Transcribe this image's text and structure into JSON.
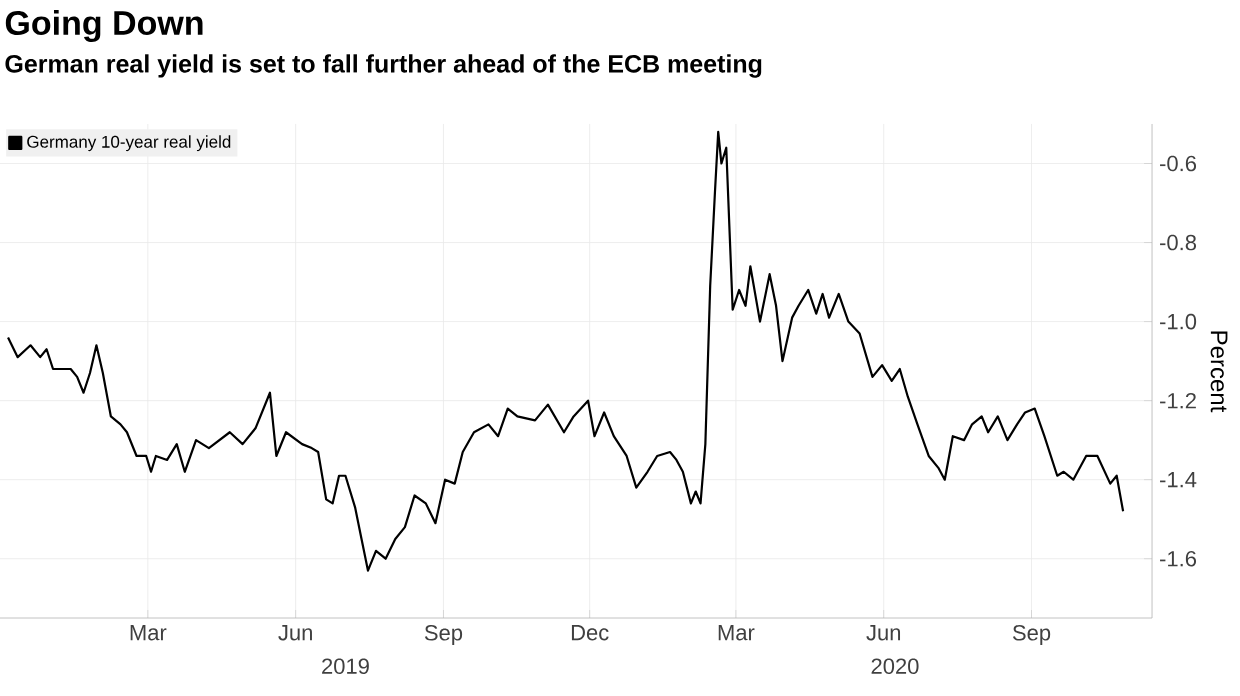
{
  "chart_data": {
    "type": "line",
    "title": "Going Down",
    "subtitle": "German real yield is set to fall further ahead of the ECB meeting",
    "ylabel": "Percent",
    "x": [
      "2018-12-04",
      "2018-12-10",
      "2018-12-18",
      "2018-12-24",
      "2018-12-28",
      "2019-01-01",
      "2019-01-12",
      "2019-01-16",
      "2019-01-20",
      "2019-01-24",
      "2019-01-28",
      "2019-02-01",
      "2019-02-06",
      "2019-02-12",
      "2019-02-16",
      "2019-02-22",
      "2019-02-28",
      "2019-03-03",
      "2019-03-06",
      "2019-03-13",
      "2019-03-19",
      "2019-03-24",
      "2019-03-31",
      "2019-04-08",
      "2019-04-21",
      "2019-04-29",
      "2019-05-07",
      "2019-05-16",
      "2019-05-20",
      "2019-05-26",
      "2019-06-05",
      "2019-06-11",
      "2019-06-15",
      "2019-06-20",
      "2019-06-24",
      "2019-06-28",
      "2019-07-02",
      "2019-07-08",
      "2019-07-12",
      "2019-07-16",
      "2019-07-21",
      "2019-07-27",
      "2019-08-02",
      "2019-08-08",
      "2019-08-14",
      "2019-08-21",
      "2019-08-27",
      "2019-09-02",
      "2019-09-08",
      "2019-09-13",
      "2019-09-20",
      "2019-09-29",
      "2019-10-05",
      "2019-10-11",
      "2019-10-17",
      "2019-10-28",
      "2019-11-05",
      "2019-11-15",
      "2019-11-21",
      "2019-11-30",
      "2019-12-04",
      "2019-12-10",
      "2019-12-16",
      "2019-12-24",
      "2019-12-30",
      "2020-01-06",
      "2020-01-12",
      "2020-01-20",
      "2020-01-24",
      "2020-01-28",
      "2020-02-02",
      "2020-02-05",
      "2020-02-08",
      "2020-02-11",
      "2020-02-14",
      "2020-02-17",
      "2020-02-19",
      "2020-02-21",
      "2020-02-24",
      "2020-02-28",
      "2020-03-03",
      "2020-03-07",
      "2020-03-10",
      "2020-03-16",
      "2020-03-22",
      "2020-03-26",
      "2020-03-30",
      "2020-04-05",
      "2020-04-09",
      "2020-04-15",
      "2020-04-20",
      "2020-04-24",
      "2020-04-28",
      "2020-05-04",
      "2020-05-10",
      "2020-05-17",
      "2020-05-25",
      "2020-05-31",
      "2020-06-06",
      "2020-06-11",
      "2020-06-16",
      "2020-06-22",
      "2020-06-29",
      "2020-07-05",
      "2020-07-09",
      "2020-07-14",
      "2020-07-21",
      "2020-07-26",
      "2020-08-01",
      "2020-08-05",
      "2020-08-11",
      "2020-08-17",
      "2020-08-23",
      "2020-08-28",
      "2020-09-03",
      "2020-09-09",
      "2020-09-17",
      "2020-09-21",
      "2020-09-27",
      "2020-10-05",
      "2020-10-12",
      "2020-10-20",
      "2020-10-24",
      "2020-10-28"
    ],
    "series": [
      {
        "name": "Germany 10-year real yield",
        "color": "#000000",
        "values": [
          -1.04,
          -1.09,
          -1.06,
          -1.09,
          -1.07,
          -1.12,
          -1.12,
          -1.14,
          -1.18,
          -1.13,
          -1.06,
          -1.13,
          -1.24,
          -1.26,
          -1.28,
          -1.34,
          -1.34,
          -1.38,
          -1.34,
          -1.35,
          -1.31,
          -1.38,
          -1.3,
          -1.32,
          -1.28,
          -1.31,
          -1.27,
          -1.18,
          -1.34,
          -1.28,
          -1.31,
          -1.32,
          -1.33,
          -1.45,
          -1.46,
          -1.39,
          -1.39,
          -1.47,
          -1.55,
          -1.63,
          -1.58,
          -1.6,
          -1.55,
          -1.52,
          -1.44,
          -1.46,
          -1.51,
          -1.4,
          -1.41,
          -1.33,
          -1.28,
          -1.26,
          -1.29,
          -1.22,
          -1.24,
          -1.25,
          -1.21,
          -1.28,
          -1.24,
          -1.2,
          -1.29,
          -1.23,
          -1.29,
          -1.34,
          -1.42,
          -1.38,
          -1.34,
          -1.33,
          -1.35,
          -1.38,
          -1.46,
          -1.43,
          -1.46,
          -1.31,
          -0.91,
          -0.67,
          -0.52,
          -0.6,
          -0.56,
          -0.97,
          -0.92,
          -0.96,
          -0.86,
          -1.0,
          -0.88,
          -0.96,
          -1.1,
          -0.99,
          -0.96,
          -0.92,
          -0.98,
          -0.93,
          -0.99,
          -0.93,
          -1.0,
          -1.03,
          -1.14,
          -1.11,
          -1.15,
          -1.12,
          -1.19,
          -1.26,
          -1.34,
          -1.37,
          -1.4,
          -1.29,
          -1.3,
          -1.26,
          -1.24,
          -1.28,
          -1.24,
          -1.3,
          -1.26,
          -1.23,
          -1.22,
          -1.29,
          -1.39,
          -1.38,
          -1.4,
          -1.34,
          -1.34,
          -1.41,
          -1.39,
          -1.48
        ]
      }
    ],
    "xlim": [
      "2018-11-29",
      "2020-11-15"
    ],
    "xticks": [
      {
        "value": "2019-03-01",
        "label": "Mar"
      },
      {
        "value": "2019-06-01",
        "label": "Jun"
      },
      {
        "value": "2019-09-01",
        "label": "Sep"
      },
      {
        "value": "2019-12-01",
        "label": "Dec"
      },
      {
        "value": "2020-03-01",
        "label": "Mar"
      },
      {
        "value": "2020-06-01",
        "label": "Jun"
      },
      {
        "value": "2020-09-01",
        "label": "Sep"
      }
    ],
    "annotations": [
      "2019",
      "2020"
    ],
    "ylim": [
      -1.75,
      -0.5
    ],
    "yticks": [
      -1.6,
      -1.4,
      -1.2,
      {
        "value": -1.0,
        "label": "-1.0"
      },
      -0.8,
      -0.6
    ],
    "grid": true,
    "legend": "top left",
    "marker": "none",
    "line_style": "solid"
  }
}
